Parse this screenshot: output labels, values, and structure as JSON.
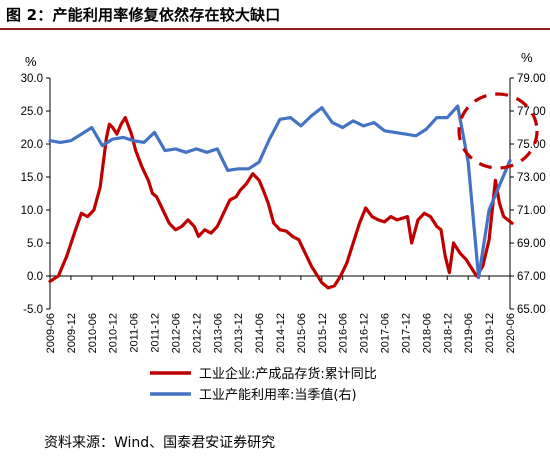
{
  "figure": {
    "title": "图 2：产能利用率修复依然存在较大缺口",
    "source": "资料来源：Wind、国泰君安证券研究"
  },
  "chart_data": {
    "type": "line",
    "left_unit": "%",
    "right_unit": "%",
    "ylim_left": [
      -5,
      30
    ],
    "ylim_right": [
      65,
      79
    ],
    "yticks_left": [
      "30.0",
      "25.0",
      "20.0",
      "15.0",
      "10.0",
      "5.0",
      "0.0",
      "-5.0"
    ],
    "yticks_right": [
      "79.00",
      "77.00",
      "75.00",
      "73.00",
      "71.00",
      "69.00",
      "67.00",
      "65.00"
    ],
    "x_categories": [
      "2009-06",
      "2009-12",
      "2010-06",
      "2010-12",
      "2011-06",
      "2011-12",
      "2012-06",
      "2012-12",
      "2013-06",
      "2013-12",
      "2014-06",
      "2014-12",
      "2015-06",
      "2015-12",
      "2016-06",
      "2016-12",
      "2017-06",
      "2017-12",
      "2018-06",
      "2018-12",
      "2019-06",
      "2019-12",
      "2020-06"
    ],
    "colors": {
      "inventory": "#c00000",
      "capacity": "#4472c4",
      "highlight_circle": "#c00000"
    },
    "series": [
      {
        "name": "工业企业:产成品存货:累计同比",
        "axis": "left",
        "color": "#c00000",
        "x": [
          2009.5,
          2009.7,
          2009.9,
          2010.1,
          2010.25,
          2010.4,
          2010.55,
          2010.7,
          2010.85,
          2010.92,
          2011.0,
          2011.1,
          2011.2,
          2011.3,
          2011.45,
          2011.55,
          2011.7,
          2011.85,
          2011.95,
          2012.05,
          2012.2,
          2012.35,
          2012.5,
          2012.65,
          2012.8,
          2012.95,
          2013.05,
          2013.2,
          2013.35,
          2013.5,
          2013.65,
          2013.8,
          2013.95,
          2014.05,
          2014.2,
          2014.35,
          2014.5,
          2014.6,
          2014.72,
          2014.85,
          2015.0,
          2015.15,
          2015.3,
          2015.45,
          2015.6,
          2015.75,
          2015.9,
          2016.0,
          2016.15,
          2016.3,
          2016.45,
          2016.6,
          2016.75,
          2016.9,
          2017.05,
          2017.2,
          2017.35,
          2017.5,
          2017.65,
          2017.8,
          2017.95,
          2018.05,
          2018.15,
          2018.3,
          2018.45,
          2018.6,
          2018.75,
          2018.85,
          2018.95,
          2019.05,
          2019.15,
          2019.3,
          2019.45,
          2019.55,
          2019.7,
          2019.85,
          2020.0,
          2020.15,
          2020.25,
          2020.35,
          2020.45,
          2020.55
        ],
        "y": [
          -0.8,
          0.0,
          3.0,
          6.8,
          9.5,
          9.0,
          10.0,
          13.5,
          21.0,
          23.0,
          22.5,
          21.5,
          23.0,
          24.0,
          21.5,
          19.0,
          16.5,
          14.5,
          12.5,
          12.0,
          10.0,
          8.0,
          7.0,
          7.5,
          8.5,
          7.5,
          6.0,
          7.0,
          6.5,
          7.5,
          9.5,
          11.5,
          12.0,
          13.0,
          14.0,
          15.5,
          14.5,
          13.0,
          11.0,
          8.0,
          7.0,
          6.8,
          6.0,
          5.5,
          3.5,
          1.5,
          0.0,
          -1.0,
          -1.8,
          -1.5,
          0.0,
          2.0,
          5.0,
          8.0,
          10.3,
          9.0,
          8.5,
          8.2,
          9.0,
          8.5,
          8.8,
          9.0,
          5.0,
          8.5,
          9.5,
          9.0,
          7.5,
          7.0,
          3.0,
          0.5,
          5.0,
          3.5,
          2.5,
          1.5,
          0.0,
          1.5,
          5.5,
          14.5,
          11.0,
          9.0,
          8.5,
          8.0
        ]
      },
      {
        "name": "工业产能利用率:当季值(右)",
        "axis": "right",
        "color": "#4472c4",
        "x": [
          2009.5,
          2009.75,
          2010.0,
          2010.25,
          2010.5,
          2010.75,
          2011.0,
          2011.25,
          2011.5,
          2011.75,
          2012.0,
          2012.25,
          2012.5,
          2012.75,
          2013.0,
          2013.25,
          2013.5,
          2013.75,
          2014.0,
          2014.25,
          2014.5,
          2014.75,
          2015.0,
          2015.25,
          2015.5,
          2015.75,
          2016.0,
          2016.25,
          2016.5,
          2016.75,
          2017.0,
          2017.25,
          2017.5,
          2017.75,
          2018.0,
          2018.25,
          2018.5,
          2018.75,
          2019.0,
          2019.25,
          2019.5,
          2019.75,
          2020.0,
          2020.25,
          2020.5
        ],
        "y": [
          75.2,
          75.1,
          75.2,
          75.6,
          76.0,
          74.9,
          75.3,
          75.4,
          75.2,
          75.1,
          75.7,
          74.6,
          74.7,
          74.5,
          74.7,
          74.5,
          74.7,
          73.4,
          73.5,
          73.5,
          73.9,
          75.3,
          76.5,
          76.6,
          76.1,
          76.7,
          77.2,
          76.3,
          76.0,
          76.4,
          76.1,
          76.3,
          75.8,
          75.7,
          75.6,
          75.5,
          75.9,
          76.6,
          76.6,
          77.3,
          73.9,
          66.9,
          71.0,
          72.5,
          74.0
        ]
      }
    ]
  },
  "legend": {
    "items": [
      {
        "label": "工业企业:产成品存货:累计同比",
        "color": "#c00000"
      },
      {
        "label": "工业产能利用率:当季值(右)",
        "color": "#4472c4"
      }
    ]
  }
}
